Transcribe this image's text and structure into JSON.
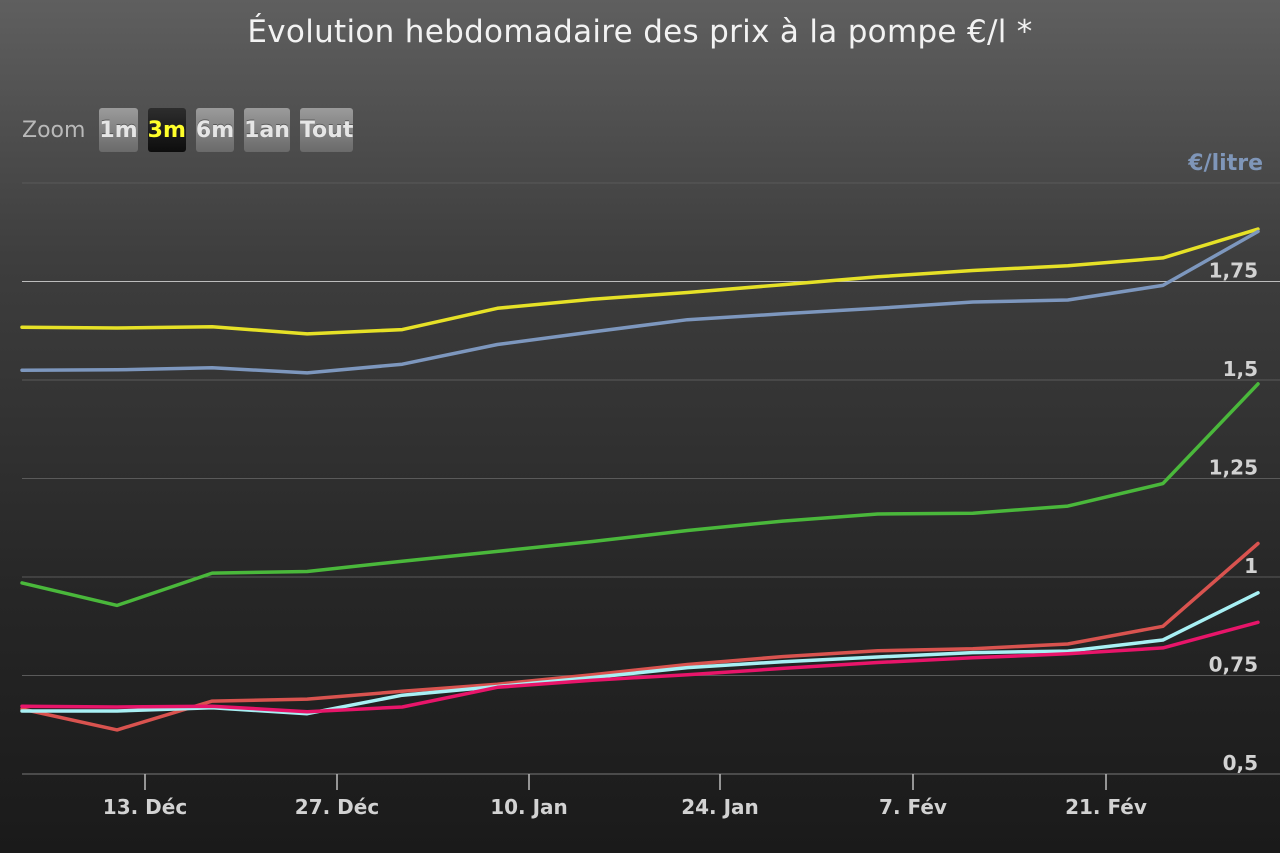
{
  "title": "Évolution hebdomadaire des prix à la pompe €/l *",
  "zoom": {
    "label": "Zoom",
    "buttons": [
      {
        "label": "1m",
        "active": false
      },
      {
        "label": "3m",
        "active": true
      },
      {
        "label": "6m",
        "active": false
      },
      {
        "label": "1an",
        "active": false
      },
      {
        "label": "Tout",
        "active": false
      }
    ]
  },
  "chart_data": {
    "type": "line",
    "y_axis_title": "€/litre",
    "y_axis_title_color": "#7f96b9",
    "ylim": [
      0.5,
      2.0
    ],
    "y_ticks": [
      {
        "value": 0.5,
        "label": "0,5"
      },
      {
        "value": 0.75,
        "label": "0,75"
      },
      {
        "value": 1.0,
        "label": "1"
      },
      {
        "value": 1.25,
        "label": "1,25"
      },
      {
        "value": 1.5,
        "label": "1,5"
      },
      {
        "value": 1.75,
        "label": "1,75"
      }
    ],
    "x_ticks": [
      "13. Déc",
      "27. Déc",
      "10. Jan",
      "24. Jan",
      "7. Fév",
      "21. Fév"
    ],
    "grid": true,
    "points": 14,
    "series": [
      {
        "color": "#e6e127",
        "values": [
          1.634,
          1.632,
          1.635,
          1.617,
          1.628,
          1.682,
          1.705,
          1.722,
          1.742,
          1.762,
          1.778,
          1.79,
          1.81,
          1.883
        ]
      },
      {
        "color": "#7d97be",
        "values": [
          1.525,
          1.526,
          1.531,
          1.518,
          1.54,
          1.59,
          1.622,
          1.653,
          1.668,
          1.682,
          1.698,
          1.703,
          1.74,
          1.877
        ]
      },
      {
        "color": "#4ab83b",
        "values": [
          0.985,
          0.928,
          1.01,
          1.014,
          1.04,
          1.065,
          1.09,
          1.118,
          1.142,
          1.16,
          1.162,
          1.18,
          1.237,
          1.49
        ]
      },
      {
        "color": "#d9534f",
        "values": [
          0.665,
          0.612,
          0.685,
          0.69,
          0.71,
          0.728,
          0.752,
          0.778,
          0.798,
          0.813,
          0.818,
          0.83,
          0.875,
          1.085
        ]
      },
      {
        "color": "#a8f0f4",
        "values": [
          0.66,
          0.66,
          0.668,
          0.653,
          0.7,
          0.722,
          0.745,
          0.77,
          0.785,
          0.797,
          0.808,
          0.812,
          0.84,
          0.96
        ]
      },
      {
        "color": "#e8156a",
        "values": [
          0.672,
          0.67,
          0.672,
          0.658,
          0.67,
          0.72,
          0.738,
          0.752,
          0.768,
          0.783,
          0.795,
          0.805,
          0.82,
          0.885
        ]
      }
    ]
  }
}
